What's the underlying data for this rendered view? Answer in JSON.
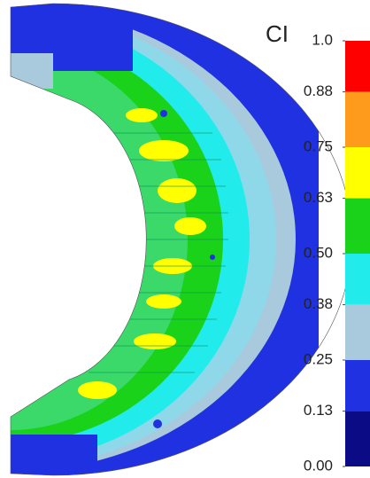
{
  "chart_data": {
    "type": "contour",
    "colorbar": {
      "label": "CI",
      "lim": [
        0,
        1
      ],
      "ticks": [
        {
          "value": 1,
          "label": "1.0"
        },
        0.88,
        0.75,
        0.63,
        {
          "value": 0.5,
          "label": "0.50"
        },
        0.38,
        0.25,
        0.13,
        {
          "value": 0,
          "label": "0.00"
        }
      ],
      "colors": [
        "#fe0000",
        "#ff9b1c",
        "#ffff00",
        "#19d219",
        "#22ebeb",
        "#a9c9dc",
        "#1f31e0",
        "#0b0b85"
      ]
    }
  }
}
